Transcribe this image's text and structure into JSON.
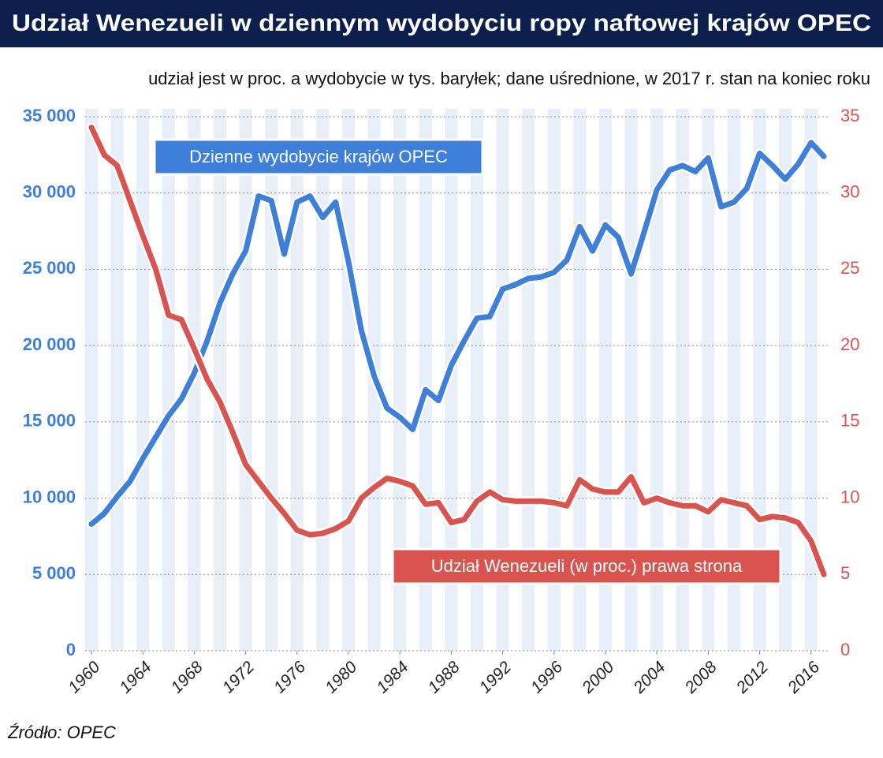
{
  "chart_data": {
    "type": "line",
    "title": "Udział Wenezueli w dziennym wydobyciu ropy naftowej krajów OPEC",
    "subtitle": "udział jest w proc. a wydobycie w tys. baryłek; dane uśrednione, w 2017 r. stan na koniec roku",
    "source": "Źródło: OPEC",
    "x": [
      1960,
      1961,
      1962,
      1963,
      1964,
      1965,
      1966,
      1967,
      1968,
      1969,
      1970,
      1971,
      1972,
      1973,
      1974,
      1975,
      1976,
      1977,
      1978,
      1979,
      1980,
      1981,
      1982,
      1983,
      1984,
      1985,
      1986,
      1987,
      1988,
      1989,
      1990,
      1991,
      1992,
      1993,
      1994,
      1995,
      1996,
      1997,
      1998,
      1999,
      2000,
      2001,
      2002,
      2003,
      2004,
      2005,
      2006,
      2007,
      2008,
      2009,
      2010,
      2011,
      2012,
      2013,
      2014,
      2015,
      2016,
      2017
    ],
    "xlim": [
      1960,
      2017
    ],
    "xticks": [
      1960,
      1964,
      1968,
      1972,
      1976,
      1980,
      1984,
      1988,
      1992,
      1996,
      2000,
      2004,
      2008,
      2012,
      2016
    ],
    "ylim": [
      0,
      35000
    ],
    "yticks": [
      0,
      {
        "value": 5000,
        "label": "5 000"
      },
      {
        "value": 10000,
        "label": "10 000"
      },
      {
        "value": 15000,
        "label": "15 000"
      },
      {
        "value": 20000,
        "label": "20 000"
      },
      {
        "value": 25000,
        "label": "25 000"
      },
      {
        "value": 30000,
        "label": "30 000"
      },
      {
        "value": 35000,
        "label": "35 000"
      }
    ],
    "y2lim": [
      0,
      35
    ],
    "y2ticks": [
      0,
      5,
      10,
      15,
      20,
      25,
      30,
      35
    ],
    "series": [
      {
        "name": "Dzienne wydobycie krajów OPEC",
        "color": "#3d7fd9",
        "axis": "y",
        "values": [
          8300,
          9000,
          10100,
          11100,
          12600,
          14000,
          15400,
          16500,
          18200,
          20300,
          22800,
          24700,
          26200,
          29800,
          29500,
          26000,
          29400,
          29800,
          28400,
          29400,
          25500,
          21000,
          18000,
          15900,
          15300,
          14500,
          17100,
          16400,
          18700,
          20300,
          21800,
          21900,
          23700,
          24000,
          24400,
          24500,
          24800,
          25600,
          27800,
          26200,
          27900,
          27100,
          24700,
          27400,
          30200,
          31500,
          31800,
          31400,
          32300,
          29100,
          29400,
          30300,
          32600,
          31800,
          30900,
          31900,
          33300,
          32400
        ]
      },
      {
        "name": "Udział Wenezueli (w proc.) prawa strona",
        "color": "#d9534f",
        "axis": "y2",
        "values": [
          34.3,
          32.5,
          31.8,
          29.5,
          27.2,
          25.0,
          22.0,
          21.7,
          19.8,
          17.8,
          16.3,
          14.3,
          12.2,
          11.1,
          10.0,
          9.0,
          7.9,
          7.6,
          7.7,
          8.0,
          8.5,
          10.0,
          10.7,
          11.3,
          11.1,
          10.8,
          9.6,
          9.7,
          8.4,
          8.6,
          9.8,
          10.4,
          9.9,
          9.8,
          9.8,
          9.8,
          9.7,
          9.5,
          11.2,
          10.6,
          10.4,
          10.4,
          11.4,
          9.7,
          10.0,
          9.7,
          9.5,
          9.5,
          9.1,
          9.9,
          9.7,
          9.5,
          8.6,
          8.8,
          8.7,
          8.4,
          7.2,
          5.0
        ]
      }
    ]
  }
}
